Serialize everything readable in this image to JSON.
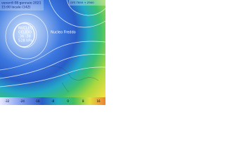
{
  "header": {
    "line1": "venerdì 08 gennaio 2021",
    "line2": "15:00 locale (14Z)",
    "source": "GFS T850 + Z500"
  },
  "labels": {
    "left": [
      "NUCLEO",
      "GELIDO",
      "-36 -38",
      "528 hPa"
    ],
    "right": "Nucleo Freddo"
  },
  "colorbar": [
    "-32",
    "-24",
    "-16",
    "-8",
    "0",
    "8",
    "16"
  ]
}
